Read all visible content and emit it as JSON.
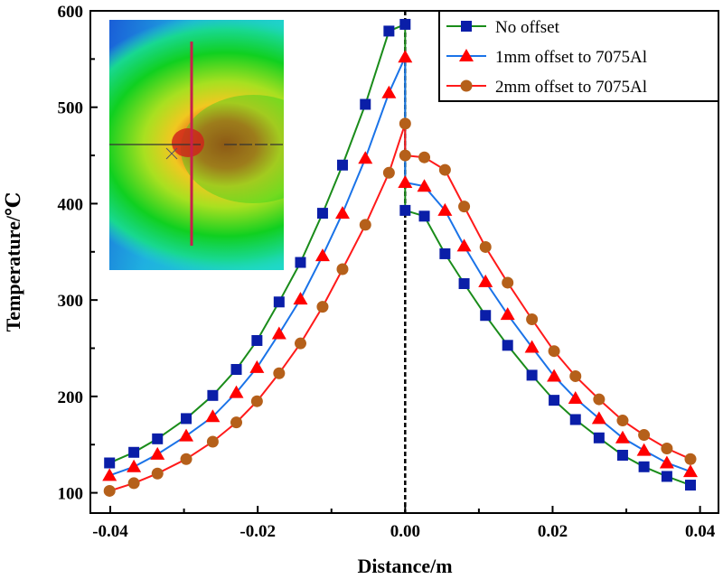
{
  "chart_data": {
    "type": "line",
    "title": "",
    "xlabel": "Distance/m",
    "ylabel": "Temperature/℃",
    "xlim": [
      -0.0427,
      0.0425
    ],
    "ylim": [
      79,
      600
    ],
    "x_ticks": [
      -0.04,
      -0.02,
      0.0,
      0.02,
      0.04
    ],
    "x_tick_labels": [
      "-0.04",
      "-0.02",
      "0.00",
      "0.02",
      "0.04"
    ],
    "y_ticks": [
      100,
      200,
      300,
      400,
      500,
      600
    ],
    "y_tick_labels": [
      "100",
      "200",
      "300",
      "400",
      "500",
      "600"
    ],
    "grid": false,
    "legend_position": "top-right",
    "reference_line": {
      "x": 0,
      "style": "dashed",
      "color": "#000000"
    },
    "inset": {
      "type": "temperature contour image",
      "position": "top-left"
    },
    "x": [
      -0.0401,
      -0.0368,
      -0.0336,
      -0.0297,
      -0.0261,
      -0.0229,
      -0.0201,
      -0.0171,
      -0.0142,
      -0.0112,
      -0.0085,
      -0.0054,
      -0.0022,
      0.0,
      0.0,
      0.0026,
      0.0054,
      0.008,
      0.0109,
      0.0139,
      0.0172,
      0.0202,
      0.0231,
      0.0263,
      0.0295,
      0.0324,
      0.0355,
      0.0387
    ],
    "series": [
      {
        "name": "No offset",
        "marker": "square",
        "line_color": "#1a8c1a",
        "marker_color": "#0a1ea8",
        "values": [
          131,
          142,
          156,
          177,
          201,
          228,
          258,
          298,
          339,
          390,
          440,
          503,
          579,
          586,
          393,
          387,
          348,
          317,
          284,
          253,
          222,
          196,
          176,
          157,
          139,
          127,
          117,
          108
        ]
      },
      {
        "name": "1mm offset to 7075Al",
        "marker": "triangle",
        "line_color": "#1a73e8",
        "marker_color": "#ff0000",
        "values": [
          118,
          127,
          140,
          159,
          179,
          204,
          230,
          265,
          301,
          346,
          390,
          447,
          515,
          552,
          422,
          418,
          393,
          356,
          319,
          285,
          251,
          221,
          198,
          177,
          157,
          144,
          131,
          122
        ]
      },
      {
        "name": "2mm offset to 7075Al",
        "marker": "circle",
        "line_color": "#ff1a1a",
        "marker_color": "#b5601a",
        "values": [
          102,
          110,
          120,
          135,
          153,
          173,
          195,
          224,
          255,
          293,
          332,
          378,
          432,
          483,
          450,
          448,
          435,
          397,
          355,
          318,
          280,
          247,
          221,
          197,
          175,
          160,
          146,
          135
        ]
      }
    ]
  }
}
